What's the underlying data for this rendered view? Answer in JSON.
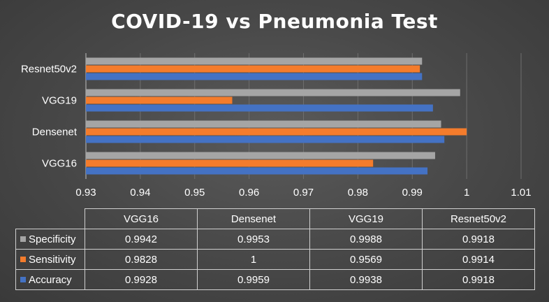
{
  "colors": {
    "specificity": "#a5a5a5",
    "sensitivity": "#f47c2c",
    "accuracy": "#4472c4",
    "grid": "#6e6e6e",
    "axis": "#bfbfbf"
  },
  "chart_data": {
    "type": "bar",
    "orientation": "horizontal",
    "title": "COVID-19 vs Pneumonia Test",
    "categories": [
      "VGG16",
      "Densenet",
      "VGG19",
      "Resnet50v2"
    ],
    "series": [
      {
        "name": "Specificity",
        "values": [
          0.9942,
          0.9953,
          0.9988,
          0.9918
        ]
      },
      {
        "name": "Sensitivity",
        "values": [
          0.9828,
          1,
          0.9569,
          0.9914
        ]
      },
      {
        "name": "Accuracy",
        "values": [
          0.9928,
          0.9959,
          0.9938,
          0.9918
        ]
      }
    ],
    "xlim": [
      0.93,
      1.01
    ],
    "xticks": [
      "0.93",
      "0.94",
      "0.95",
      "0.96",
      "0.97",
      "0.98",
      "0.99",
      "1",
      "1.01"
    ],
    "grid": true,
    "legend": "data-table-below",
    "table": {
      "rows": [
        {
          "name": "Specificity",
          "cells": [
            "0.9942",
            "0.9953",
            "0.9988",
            "0.9918"
          ]
        },
        {
          "name": "Sensitivity",
          "cells": [
            "0.9828",
            "1",
            "0.9569",
            "0.9914"
          ]
        },
        {
          "name": "Accuracy",
          "cells": [
            "0.9928",
            "0.9959",
            "0.9938",
            "0.9918"
          ]
        }
      ]
    }
  }
}
